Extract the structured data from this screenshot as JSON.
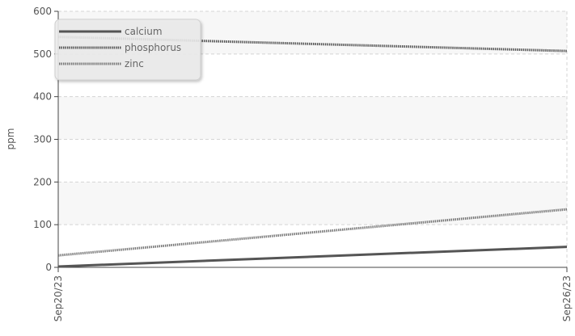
{
  "chart_data": {
    "type": "line",
    "title": "",
    "xlabel": "",
    "ylabel": "ppm",
    "x": [
      "Sep20/23",
      "Sep26/23"
    ],
    "ylim": [
      0,
      600
    ],
    "yticks": [
      0,
      100,
      200,
      300,
      400,
      500,
      600
    ],
    "grid": true,
    "legend_position": "top-left",
    "series": [
      {
        "name": "calcium",
        "values": [
          2,
          48
        ],
        "color": "#555555",
        "style": "solid"
      },
      {
        "name": "phosphorus",
        "values": [
          540,
          507
        ],
        "color": "#555555",
        "style": "dotted"
      },
      {
        "name": "zinc",
        "values": [
          28,
          136
        ],
        "color": "#777777",
        "style": "dotted"
      }
    ]
  }
}
